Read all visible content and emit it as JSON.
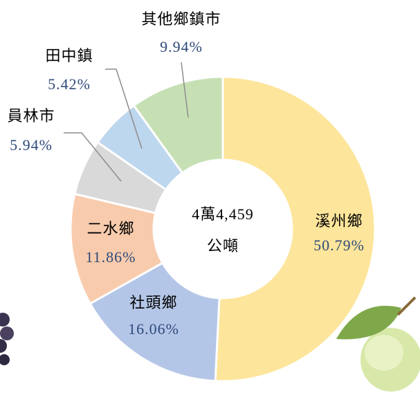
{
  "chart_data": {
    "type": "donut",
    "center_text": [
      "4萬4,459",
      "公噸"
    ],
    "categories": [
      "溪州鄉",
      "社頭鄉",
      "二水鄉",
      "員林市",
      "田中鎮",
      "其他鄉鎮市"
    ],
    "values": [
      50.79,
      16.06,
      11.86,
      5.94,
      5.42,
      9.94
    ],
    "value_labels": [
      "50.79%",
      "16.06%",
      "11.86%",
      "5.94%",
      "5.42%",
      "9.94%"
    ],
    "colors": [
      "#fde59b",
      "#b4c6e7",
      "#f8cbad",
      "#d9d9d9",
      "#bdd7ee",
      "#c6e0b4"
    ]
  }
}
